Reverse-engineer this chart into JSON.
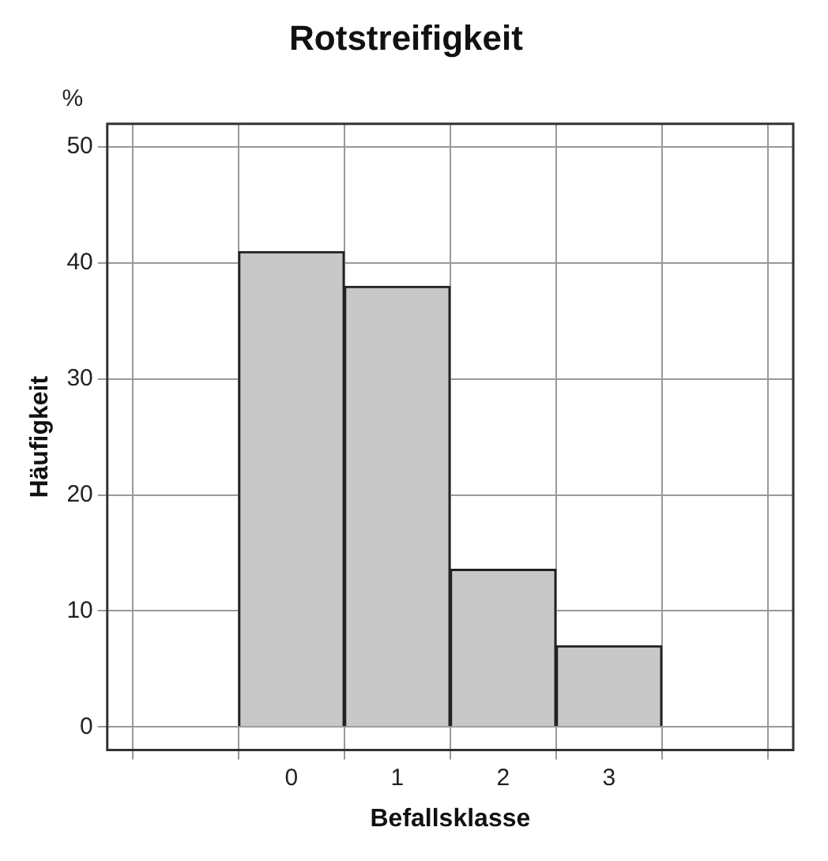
{
  "chart_data": {
    "type": "bar",
    "title": "Rotstreifigkeit",
    "xlabel": "Befallsklasse",
    "ylabel": "Häufigkeit",
    "annotations": [
      "%"
    ],
    "categories": [
      "0",
      "1",
      "2",
      "3"
    ],
    "values": [
      41,
      38,
      13.6,
      7
    ],
    "color": "#c8c8c8",
    "ylim": [
      -2,
      52
    ],
    "yticks": [
      0,
      10,
      20,
      30,
      40,
      50
    ],
    "grid": true
  }
}
